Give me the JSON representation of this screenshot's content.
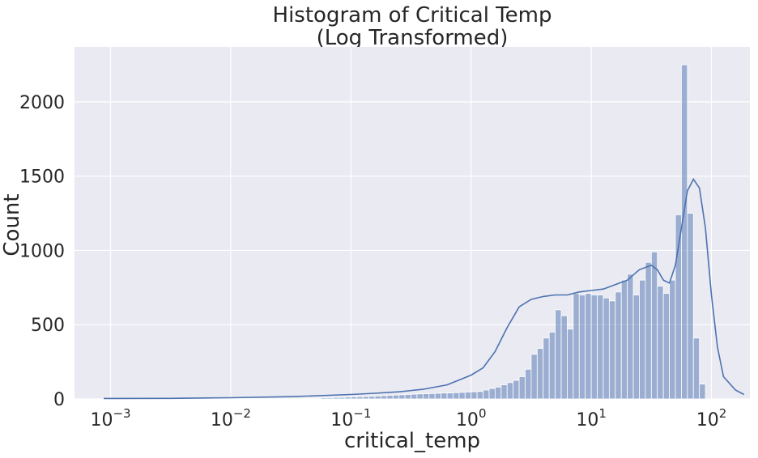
{
  "chart_data": {
    "type": "bar",
    "title": [
      "Histogram of Critical Temp",
      "(Log Transformed)"
    ],
    "xlabel": "critical_temp",
    "ylabel": "Count",
    "x_scale": "log",
    "x_ticks": [
      "10^-3",
      "10^-2",
      "10^-1",
      "10^0",
      "10^1",
      "10^2"
    ],
    "y_ticks": [
      0,
      500,
      1000,
      1500,
      2000
    ],
    "ylim": [
      0,
      2370
    ],
    "xlim_log10": [
      -3.3,
      2.32
    ],
    "grid": true,
    "bins": {
      "log10_start": -1.4,
      "log10_width": 0.05,
      "counts": [
        4,
        5,
        5,
        8,
        8,
        10,
        10,
        12,
        14,
        15,
        16,
        18,
        20,
        22,
        24,
        26,
        28,
        30,
        32,
        34,
        35,
        36,
        38,
        40,
        40,
        42,
        44,
        46,
        48,
        50,
        60,
        70,
        80,
        95,
        110,
        125,
        150,
        200,
        300,
        340,
        410,
        450,
        600,
        560,
        470,
        710,
        700,
        710,
        700,
        700,
        680,
        660,
        720,
        800,
        840,
        700,
        800,
        920,
        990,
        760,
        710,
        800,
        1240,
        2250,
        1250,
        410,
        100
      ],
      "color": "#4c72b0"
    },
    "kde": {
      "log10_x": [
        -3.6,
        -3.0,
        -2.5,
        -2.0,
        -1.5,
        -1.0,
        -0.8,
        -0.6,
        -0.4,
        -0.2,
        0.0,
        0.1,
        0.2,
        0.3,
        0.4,
        0.5,
        0.6,
        0.7,
        0.8,
        0.9,
        1.0,
        1.1,
        1.2,
        1.3,
        1.4,
        1.5,
        1.55,
        1.6,
        1.65,
        1.7,
        1.75,
        1.8,
        1.85,
        1.9,
        1.95,
        2.0,
        2.05,
        2.1,
        2.2,
        2.27
      ],
      "values": [
        3,
        3,
        4,
        8,
        15,
        30,
        38,
        48,
        65,
        95,
        160,
        210,
        320,
        480,
        620,
        670,
        690,
        700,
        700,
        720,
        730,
        740,
        770,
        800,
        870,
        900,
        870,
        800,
        780,
        900,
        1150,
        1400,
        1480,
        1420,
        1150,
        700,
        350,
        150,
        60,
        30
      ],
      "color": "#4c72b0"
    }
  }
}
